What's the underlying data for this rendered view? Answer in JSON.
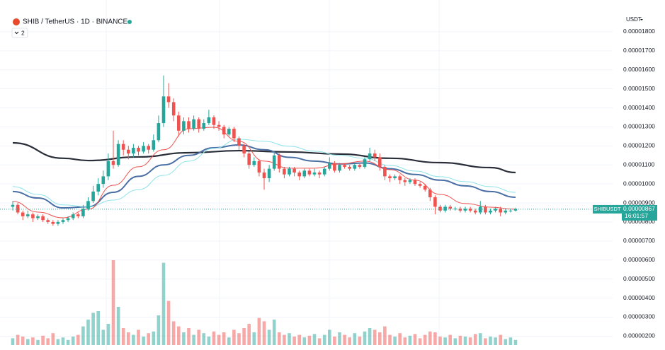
{
  "header": {
    "symbol": "SHIB / TetherUS · 1D · BINANCE",
    "indicators": "2",
    "currency": "USDT"
  },
  "chart_data": {
    "type": "candlestick",
    "up_color": "#26a69a",
    "down_color": "#ef5350",
    "ylim": [
      1.27e-06,
      1.967e-05
    ],
    "yticks": [
      {
        "value": 1.8e-05,
        "label": "0.00001800"
      },
      {
        "value": 1.7e-05,
        "label": "0.00001700"
      },
      {
        "value": 1.6e-05,
        "label": "0.00001600"
      },
      {
        "value": 1.5e-05,
        "label": "0.00001500"
      },
      {
        "value": 1.4e-05,
        "label": "0.00001400"
      },
      {
        "value": 1.3e-05,
        "label": "0.00001300"
      },
      {
        "value": 1.2e-05,
        "label": "0.00001200"
      },
      {
        "value": 1.1e-05,
        "label": "0.00001100"
      },
      {
        "value": 1e-05,
        "label": "0.00001000"
      },
      {
        "value": 9e-06,
        "label": "0.00000900"
      },
      {
        "value": 8e-06,
        "label": "0.00000800"
      },
      {
        "value": 7e-06,
        "label": "0.00000700"
      },
      {
        "value": 6e-06,
        "label": "0.00000600"
      },
      {
        "value": 5e-06,
        "label": "0.00000500"
      },
      {
        "value": 4e-06,
        "label": "0.00000400"
      },
      {
        "value": 3e-06,
        "label": "0.00000300"
      },
      {
        "value": 2e-06,
        "label": "0.00000200"
      }
    ],
    "grid": true,
    "ohlc": [
      [
        8.8e-06,
        9.1e-06,
        8.6e-06,
        8.9e-06
      ],
      [
        8.9e-06,
        9e-06,
        8.4e-06,
        8.5e-06
      ],
      [
        8.5e-06,
        8.6e-06,
        8.1e-06,
        8.3e-06
      ],
      [
        8.3e-06,
        8.6e-06,
        8.2e-06,
        8.4e-06
      ],
      [
        8.4e-06,
        8.5e-06,
        8e-06,
        8.2e-06
      ],
      [
        8.2e-06,
        8.4e-06,
        8.1e-06,
        8.3e-06
      ],
      [
        8.3e-06,
        8.4e-06,
        8e-06,
        8.1e-06
      ],
      [
        8.1e-06,
        8.2e-06,
        7.9e-06,
        8e-06
      ],
      [
        8e-06,
        8.1e-06,
        7.8e-06,
        7.9e-06
      ],
      [
        7.9e-06,
        8.1e-06,
        7.8e-06,
        8e-06
      ],
      [
        8e-06,
        8.2e-06,
        7.9e-06,
        8.1e-06
      ],
      [
        8.1e-06,
        8.3e-06,
        8e-06,
        8.2e-06
      ],
      [
        8.2e-06,
        8.5e-06,
        8.1e-06,
        8.4e-06
      ],
      [
        8.4e-06,
        8.5e-06,
        8.2e-06,
        8.3e-06
      ],
      [
        8.3e-06,
        8.9e-06,
        8.2e-06,
        8.7e-06
      ],
      [
        8.7e-06,
        9.3e-06,
        8.6e-06,
        9.1e-06
      ],
      [
        9.1e-06,
        9.9e-06,
        9e-06,
        9.6e-06
      ],
      [
        9.6e-06,
        1.03e-05,
        9.4e-06,
        1e-05
      ],
      [
        1e-05,
        1.07e-05,
        9.8e-06,
        1.04e-05
      ],
      [
        1.04e-05,
        1.16e-05,
        1.02e-05,
        1.12e-05
      ],
      [
        1.12e-05,
        1.28e-05,
        1.08e-05,
        1.1e-05
      ],
      [
        1.1e-05,
        1.23e-05,
        1.09e-05,
        1.21e-05
      ],
      [
        1.21e-05,
        1.23e-05,
        1.15e-05,
        1.18e-05
      ],
      [
        1.18e-05,
        1.2e-05,
        1.13e-05,
        1.16e-05
      ],
      [
        1.16e-05,
        1.21e-05,
        1.14e-05,
        1.19e-05
      ],
      [
        1.19e-05,
        1.2e-05,
        1.15e-05,
        1.17e-05
      ],
      [
        1.17e-05,
        1.22e-05,
        1.16e-05,
        1.2e-05
      ],
      [
        1.2e-05,
        1.21e-05,
        1.16e-05,
        1.18e-05
      ],
      [
        1.18e-05,
        1.26e-05,
        1.17e-05,
        1.23e-05
      ],
      [
        1.23e-05,
        1.36e-05,
        1.22e-05,
        1.32e-05
      ],
      [
        1.32e-05,
        1.57e-05,
        1.3e-05,
        1.46e-05
      ],
      [
        1.46e-05,
        1.53e-05,
        1.4e-05,
        1.43e-05
      ],
      [
        1.43e-05,
        1.45e-05,
        1.33e-05,
        1.36e-05
      ],
      [
        1.36e-05,
        1.38e-05,
        1.25e-05,
        1.28e-05
      ],
      [
        1.28e-05,
        1.35e-05,
        1.26e-05,
        1.33e-05
      ],
      [
        1.33e-05,
        1.35e-05,
        1.27e-05,
        1.29e-05
      ],
      [
        1.29e-05,
        1.36e-05,
        1.28e-05,
        1.34e-05
      ],
      [
        1.34e-05,
        1.35e-05,
        1.27e-05,
        1.29e-05
      ],
      [
        1.29e-05,
        1.34e-05,
        1.28e-05,
        1.32e-05
      ],
      [
        1.32e-05,
        1.39e-05,
        1.31e-05,
        1.35e-05
      ],
      [
        1.35e-05,
        1.36e-05,
        1.29e-05,
        1.31e-05
      ],
      [
        1.31e-05,
        1.33e-05,
        1.28e-05,
        1.3e-05
      ],
      [
        1.3e-05,
        1.31e-05,
        1.24e-05,
        1.26e-05
      ],
      [
        1.26e-05,
        1.3e-05,
        1.25e-05,
        1.29e-05
      ],
      [
        1.29e-05,
        1.3e-05,
        1.22e-05,
        1.24e-05
      ],
      [
        1.24e-05,
        1.25e-05,
        1.18e-05,
        1.2e-05
      ],
      [
        1.2e-05,
        1.21e-05,
        1.14e-05,
        1.16e-05
      ],
      [
        1.16e-05,
        1.17e-05,
        1.08e-05,
        1.1e-05
      ],
      [
        1.1e-05,
        1.14e-05,
        1.09e-05,
        1.12e-05
      ],
      [
        1.12e-05,
        1.13e-05,
        1.04e-05,
        1.06e-05
      ],
      [
        1.06e-05,
        1.08e-05,
        9.7e-06,
        1.03e-05
      ],
      [
        1.03e-05,
        1.1e-05,
        1.01e-05,
        1.08e-05
      ],
      [
        1.08e-05,
        1.17e-05,
        1.07e-05,
        1.15e-05
      ],
      [
        1.15e-05,
        1.16e-05,
        1.06e-05,
        1.08e-05
      ],
      [
        1.08e-05,
        1.09e-05,
        1.03e-05,
        1.05e-05
      ],
      [
        1.05e-05,
        1.09e-05,
        1.04e-05,
        1.08e-05
      ],
      [
        1.08e-05,
        1.09e-05,
        1.04e-05,
        1.06e-05
      ],
      [
        1.06e-05,
        1.07e-05,
        1.02e-05,
        1.04e-05
      ],
      [
        1.04e-05,
        1.08e-05,
        1.03e-05,
        1.07e-05
      ],
      [
        1.07e-05,
        1.08e-05,
        1.04e-05,
        1.05e-05
      ],
      [
        1.05e-05,
        1.08e-05,
        1.04e-05,
        1.06e-05
      ],
      [
        1.06e-05,
        1.07e-05,
        1.03e-05,
        1.05e-05
      ],
      [
        1.05e-05,
        1.09e-05,
        1.04e-05,
        1.08e-05
      ],
      [
        1.08e-05,
        1.14e-05,
        1.07e-05,
        1.11e-05
      ],
      [
        1.11e-05,
        1.12e-05,
        1.06e-05,
        1.07e-05
      ],
      [
        1.07e-05,
        1.11e-05,
        1.06e-05,
        1.1e-05
      ],
      [
        1.1e-05,
        1.11e-05,
        1.08e-05,
        1.09e-05
      ],
      [
        1.09e-05,
        1.1e-05,
        1.07e-05,
        1.08e-05
      ],
      [
        1.08e-05,
        1.11e-05,
        1.07e-05,
        1.1e-05
      ],
      [
        1.1e-05,
        1.11e-05,
        1.08e-05,
        1.09e-05
      ],
      [
        1.09e-05,
        1.14e-05,
        1.08e-05,
        1.13e-05
      ],
      [
        1.13e-05,
        1.19e-05,
        1.12e-05,
        1.16e-05
      ],
      [
        1.16e-05,
        1.18e-05,
        1.12e-05,
        1.14e-05
      ],
      [
        1.14e-05,
        1.16e-05,
        1.07e-05,
        1.09e-05
      ],
      [
        1.09e-05,
        1.1e-05,
        1.02e-05,
        1.04e-05
      ],
      [
        1.04e-05,
        1.05e-05,
        1.01e-05,
        1.03e-05
      ],
      [
        1.03e-05,
        1.05e-05,
        1.02e-05,
        1.04e-05
      ],
      [
        1.04e-05,
        1.05e-05,
        1e-05,
        1.02e-05
      ],
      [
        1.02e-05,
        1.03e-05,
        9.9e-06,
        1.01e-05
      ],
      [
        1.01e-05,
        1.03e-05,
        1e-05,
        1.02e-05
      ],
      [
        1.02e-05,
        1.03e-05,
        9.9e-06,
        1e-05
      ],
      [
        1e-05,
        1.01e-05,
        9.8e-06,
        9.9e-06
      ],
      [
        9.9e-06,
        1e-05,
        9.6e-06,
        9.7e-06
      ],
      [
        9.7e-06,
        9.8e-06,
        9.1e-06,
        9.3e-06
      ],
      [
        9.3e-06,
        9.4e-06,
        8.4e-06,
        8.8e-06
      ],
      [
        8.8e-06,
        8.9e-06,
        8.5e-06,
        8.6e-06
      ],
      [
        8.6e-06,
        8.9e-06,
        8.5e-06,
        8.8e-06
      ],
      [
        8.8e-06,
        8.9e-06,
        8.6e-06,
        8.7e-06
      ],
      [
        8.7e-06,
        8.8e-06,
        8.6e-06,
        8.7e-06
      ],
      [
        8.7e-06,
        8.8e-06,
        8.5e-06,
        8.6e-06
      ],
      [
        8.6e-06,
        8.8e-06,
        8.5e-06,
        8.7e-06
      ],
      [
        8.7e-06,
        8.8e-06,
        8.5e-06,
        8.6e-06
      ],
      [
        8.6e-06,
        8.7e-06,
        8.4e-06,
        8.5e-06
      ],
      [
        8.5e-06,
        9.1e-06,
        8.4e-06,
        8.8e-06
      ],
      [
        8.8e-06,
        8.9e-06,
        8.4e-06,
        8.5e-06
      ],
      [
        8.5e-06,
        8.7e-06,
        8.4e-06,
        8.6e-06
      ],
      [
        8.6e-06,
        8.8e-06,
        8.5e-06,
        8.7e-06
      ],
      [
        8.7e-06,
        8.8e-06,
        8.3e-06,
        8.5e-06
      ],
      [
        8.5e-06,
        8.7e-06,
        8.4e-06,
        8.6e-06
      ],
      [
        8.6e-06,
        8.7e-06,
        8.5e-06,
        8.6e-06
      ],
      [
        8.6e-06,
        8.75e-06,
        8.55e-06,
        8.67e-06
      ]
    ],
    "volume": [
      8,
      12,
      10,
      7,
      9,
      6,
      11,
      8,
      14,
      7,
      9,
      6,
      10,
      12,
      22,
      30,
      38,
      40,
      18,
      25,
      100,
      45,
      20,
      15,
      12,
      18,
      10,
      14,
      16,
      35,
      97,
      52,
      28,
      22,
      15,
      20,
      12,
      18,
      14,
      10,
      16,
      12,
      15,
      9,
      18,
      14,
      20,
      25,
      15,
      32,
      28,
      18,
      30,
      15,
      12,
      14,
      10,
      12,
      9,
      11,
      13,
      8,
      12,
      18,
      10,
      15,
      12,
      9,
      14,
      10,
      16,
      20,
      18,
      15,
      22,
      12,
      10,
      14,
      9,
      11,
      13,
      8,
      12,
      16,
      15,
      10,
      9,
      12,
      8,
      11,
      10,
      9,
      13,
      14,
      8,
      10,
      9,
      12,
      7,
      9,
      6
    ],
    "vlim": [
      0,
      100
    ],
    "lines": [
      {
        "color": "#2a2e39",
        "width": 2.2,
        "x": [
          0,
          10,
          15,
          25,
          35,
          45,
          55,
          65,
          75,
          85,
          95,
          100
        ],
        "values": [
          1.216e-05,
          1.135e-05,
          1.123e-05,
          1.142e-05,
          1.164e-05,
          1.175e-05,
          1.168e-05,
          1.157e-05,
          1.135e-05,
          1.112e-05,
          1.086e-05,
          1.06e-05
        ]
      },
      {
        "color": "#4a6fa5",
        "width": 2,
        "x": [
          0,
          5,
          10,
          15,
          20,
          25,
          30,
          35,
          40,
          45,
          50,
          55,
          60,
          65,
          70,
          75,
          80,
          85,
          90,
          95,
          100
        ],
        "values": [
          9.6e-06,
          9.26e-06,
          8.74e-06,
          8.8e-06,
          9.56e-06,
          1.04e-05,
          1.1e-05,
          1.15e-05,
          1.19e-05,
          1.205e-05,
          1.18e-05,
          1.14e-05,
          1.12e-05,
          1.105e-05,
          1.11e-05,
          1.08e-05,
          1.05e-05,
          1.02e-05,
          9.9e-06,
          9.6e-06,
          9.3e-06
        ]
      },
      {
        "color": "#8ee3ea",
        "width": 1,
        "x": [
          0,
          5,
          10,
          15,
          20,
          25,
          30,
          35,
          40,
          45,
          50,
          55,
          60,
          65,
          70,
          75,
          80,
          85,
          90,
          95,
          100
        ],
        "values": [
          9.86e-06,
          9.45e-06,
          8.9e-06,
          8.8e-06,
          9.15e-06,
          9.7e-06,
          1.045e-05,
          1.12e-05,
          1.187e-05,
          1.235e-05,
          1.224e-05,
          1.198e-05,
          1.172e-05,
          1.15e-05,
          1.135e-05,
          1.097e-05,
          1.068e-05,
          1.038e-05,
          1.012e-05,
          9.86e-06,
          9.56e-06
        ]
      },
      {
        "color": "#ef5350",
        "width": 1,
        "x": [
          0,
          5,
          10,
          15,
          20,
          25,
          30,
          35,
          40,
          45,
          50,
          55,
          60,
          65,
          70,
          75,
          80,
          85,
          90,
          95,
          100
        ],
        "values": [
          9.08e-06,
          8.52e-06,
          8.22e-06,
          8.67e-06,
          9.93e-06,
          1.09e-05,
          1.18e-05,
          1.29e-05,
          1.298e-05,
          1.224e-05,
          1.12e-05,
          1.083e-05,
          1.083e-05,
          1.105e-05,
          1.12e-05,
          1.075e-05,
          1.02e-05,
          9.45e-06,
          8.97e-06,
          8.78e-06,
          8.67e-06
        ]
      }
    ],
    "last_price": {
      "label": "SHIBUSDT",
      "value": 8.67e-06,
      "value_label": "0.00000867",
      "time": "16:01:57"
    }
  }
}
